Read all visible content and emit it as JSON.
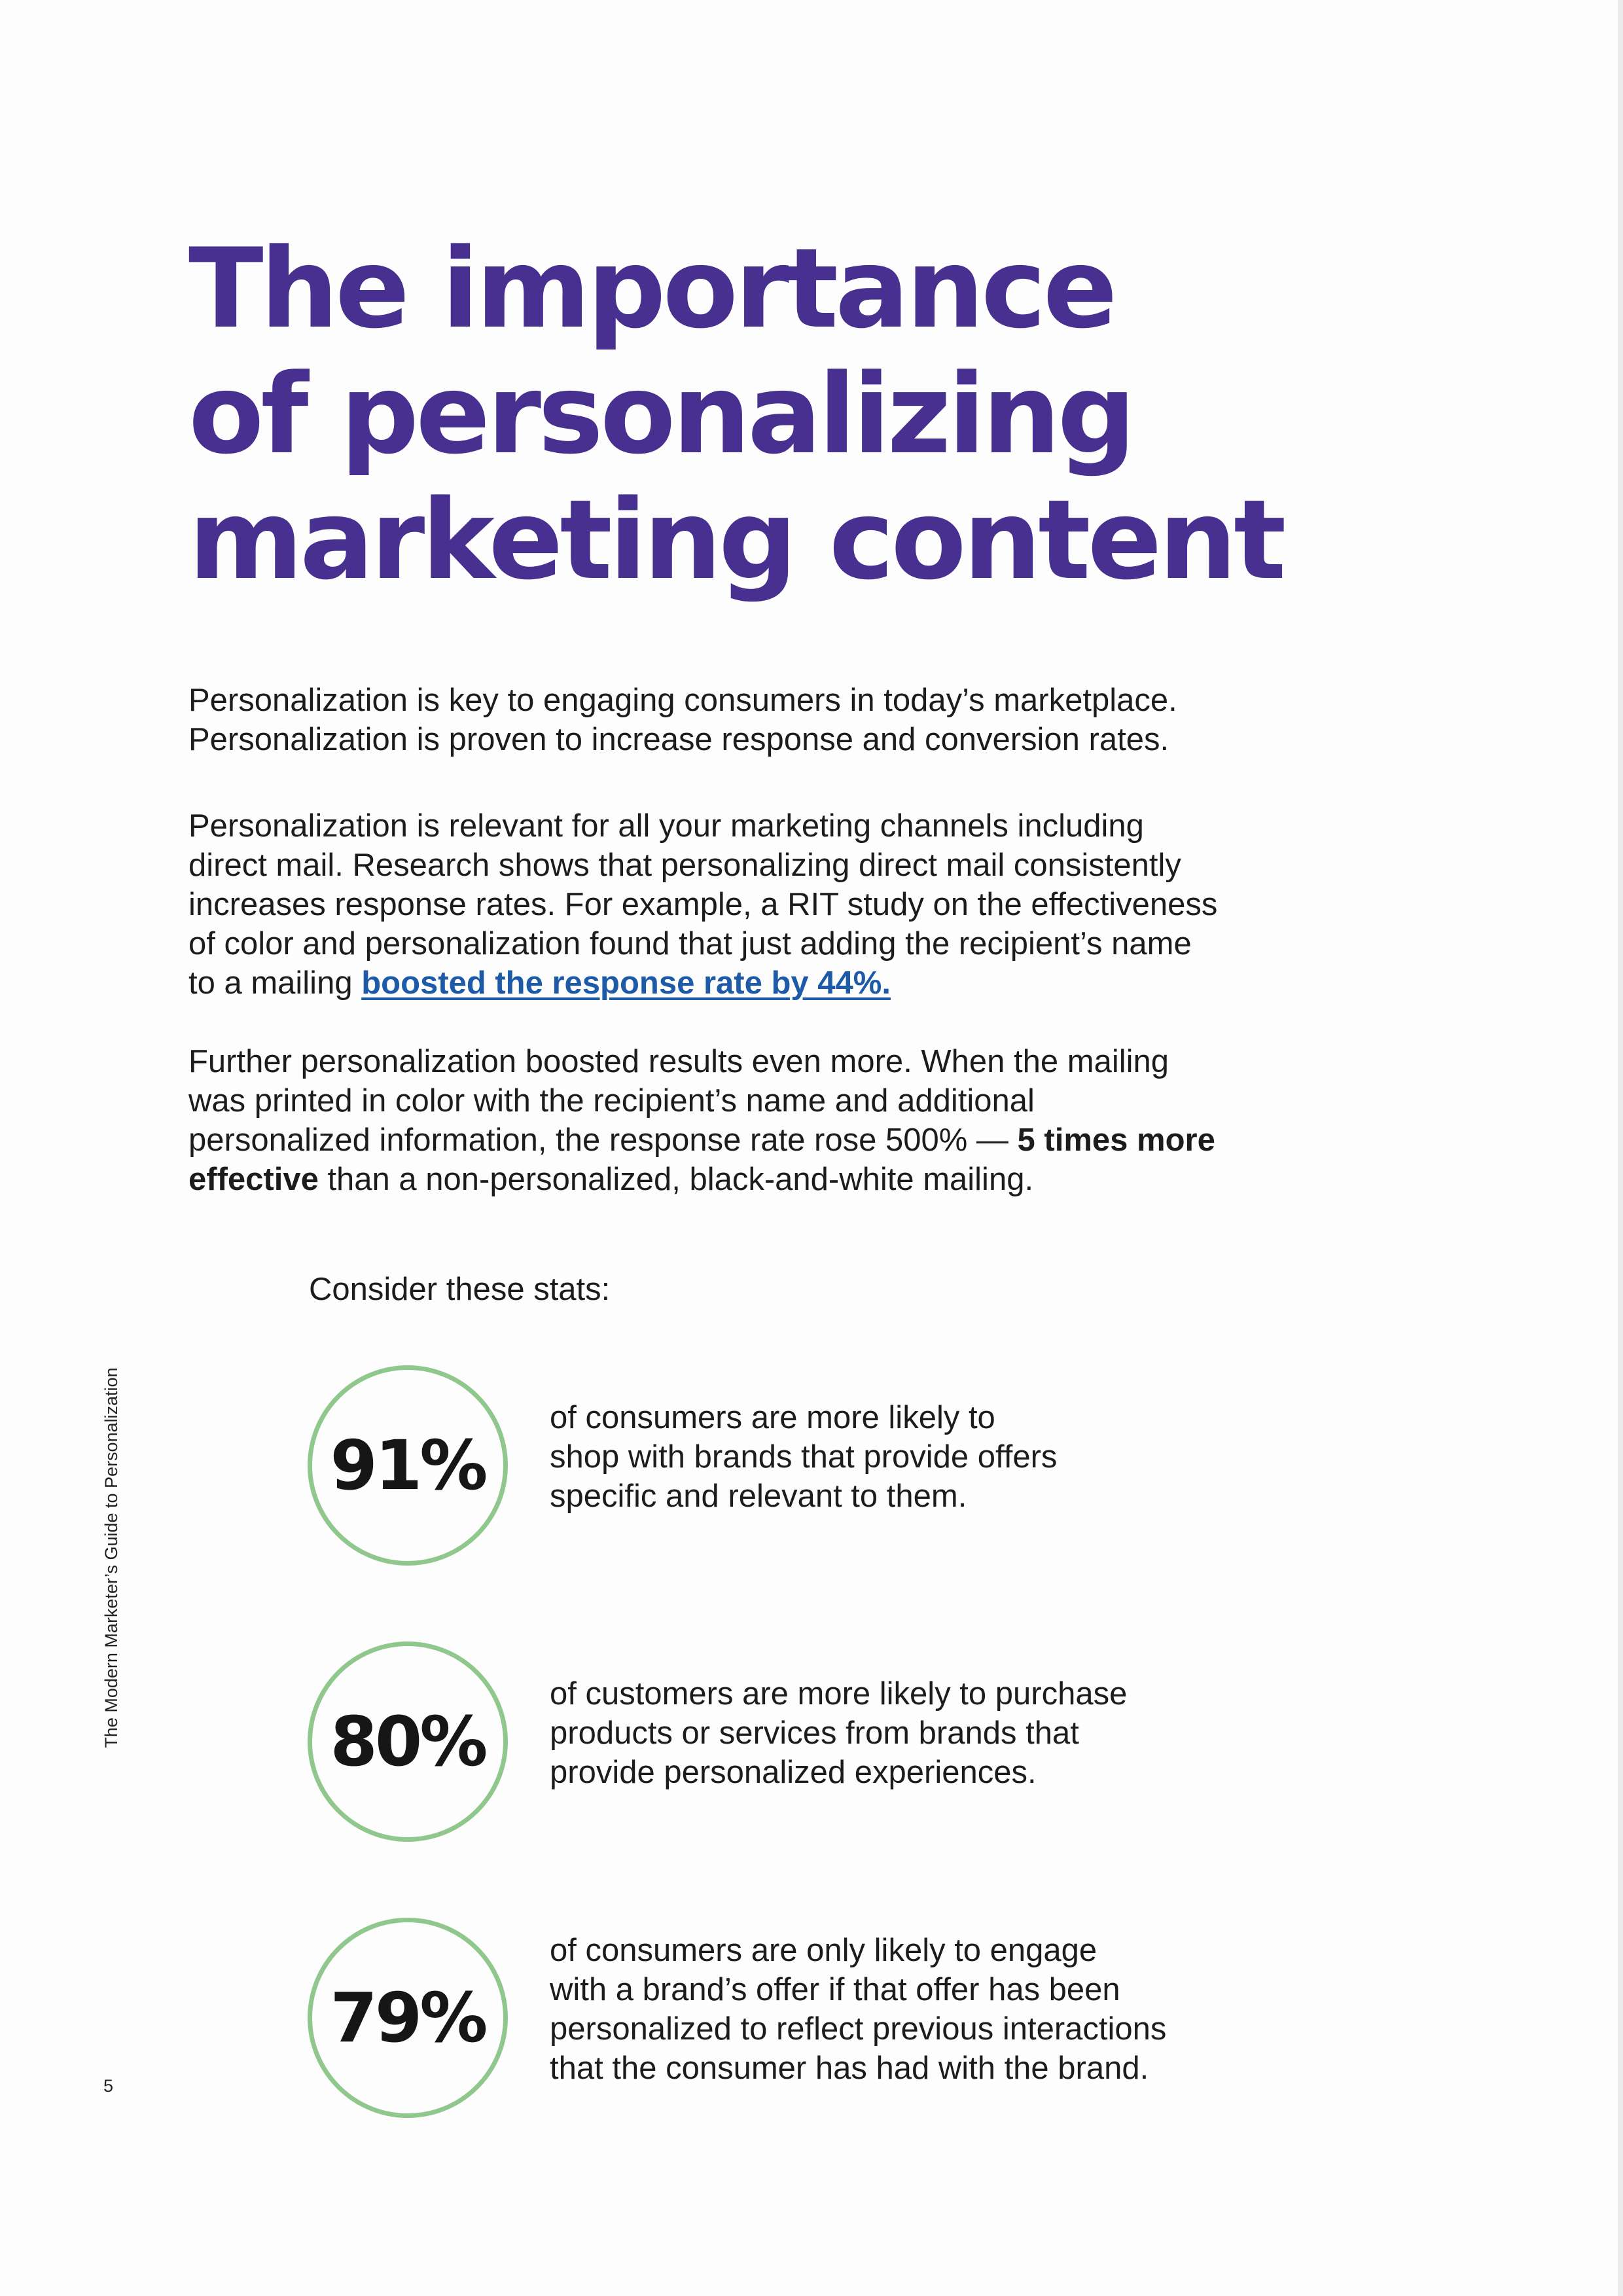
{
  "title_lines": [
    "The importance",
    "of personalizing",
    "marketing content"
  ],
  "paragraph1": {
    "text": "Personalization is key to engaging consumers in today’s marketplace. Personalization is proven to increase response and conversion rates."
  },
  "paragraph2": {
    "text": "Personalization is relevant for all your marketing channels including direct mail. Research shows that personalizing direct mail consistently increases response rates. For example, a RIT study on the effectiveness of color and personalization found that just adding the recipient’s name to a mailing ",
    "link": "boosted the response rate by 44%."
  },
  "paragraph3": {
    "before": "Further personalization boosted results even more. When the mailing was printed in color with the recipient’s name and additional personalized information, the response rate rose 500% — ",
    "bold": "5 times more effective",
    "after": " than a non-personalized, black-and-white mailing."
  },
  "stats_intro": "Consider these stats:",
  "stats": [
    {
      "value": "91%",
      "lines": [
        "of consumers are more likely to",
        "shop with brands that provide offers",
        "specific and relevant to them."
      ]
    },
    {
      "value": "80%",
      "lines": [
        "of customers are more likely to purchase",
        "products or services from brands that",
        "provide personalized experiences."
      ]
    },
    {
      "value": "79%",
      "lines": [
        "of consumers are only likely to engage",
        "with a brand’s offer if that offer has been",
        "personalized to reflect previous interactions",
        "that the consumer has had with the brand."
      ]
    }
  ],
  "side_title": "The Modern Marketer’s Guide to Personalization",
  "page_number": "5",
  "colors": {
    "title": "#47308f",
    "link": "#1d5ba8",
    "circle_border": "#8fc78d",
    "text": "#1c1c1c"
  }
}
